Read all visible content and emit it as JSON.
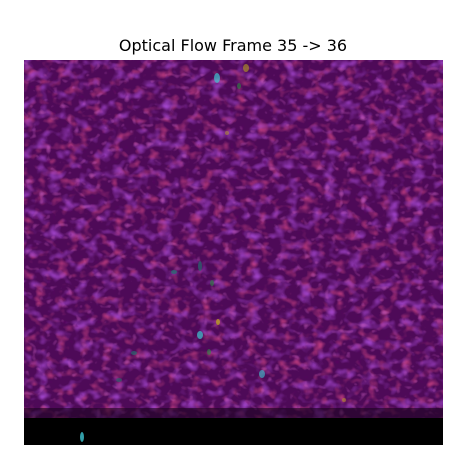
{
  "figure": {
    "title": "Optical Flow Frame 35 -> 36"
  },
  "image": {
    "description_colors": {
      "base": "#4e0a58",
      "red_tint": "#6b0a2e",
      "purple_tint": "#5a0d8a",
      "magenta_tint": "#8a1a7a",
      "bottom_band": "#000000",
      "speck_cyan": "#3fc6d2",
      "speck_yellow": "#b8a022",
      "speck_green": "#2e8a44"
    }
  }
}
